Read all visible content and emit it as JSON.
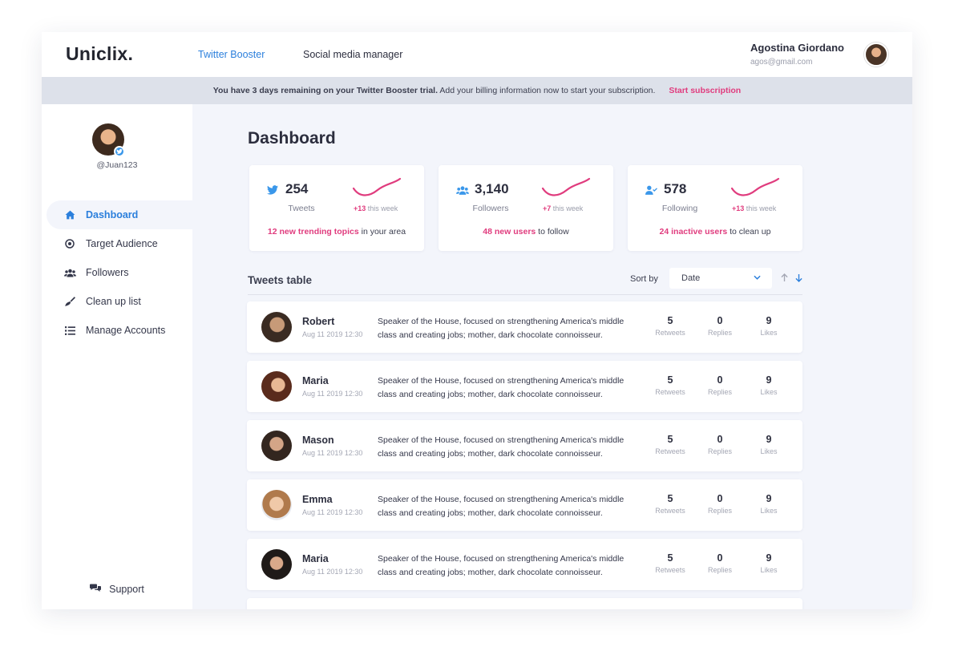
{
  "app": {
    "logo": "Uniclix.",
    "nav": [
      {
        "label": "Twitter Booster",
        "active": true
      },
      {
        "label": "Social media manager",
        "active": false
      }
    ],
    "user": {
      "name": "Agostina Giordano",
      "email": "agos@gmail.com"
    }
  },
  "banner": {
    "strong": "You have 3 days remaining on your Twitter Booster trial.",
    "text": "Add your billing information now to start your subscription.",
    "cta": "Start subscription"
  },
  "sidebar": {
    "handle": "@Juan123",
    "items": [
      {
        "label": "Dashboard",
        "icon": "home-icon",
        "active": true
      },
      {
        "label": "Target Audience",
        "icon": "target-icon",
        "active": false
      },
      {
        "label": "Followers",
        "icon": "users-icon",
        "active": false
      },
      {
        "label": "Clean up list",
        "icon": "broom-icon",
        "active": false
      },
      {
        "label": "Manage Accounts",
        "icon": "list-icon",
        "active": false
      }
    ],
    "support": "Support"
  },
  "main": {
    "title": "Dashboard",
    "stats": [
      {
        "icon": "twitter-bird-icon",
        "value": "254",
        "label": "Tweets",
        "delta": "+13",
        "delta_suffix": " this week",
        "note_hl": "12 new trending topics",
        "note": " in your area"
      },
      {
        "icon": "followers-icon",
        "value": "3,140",
        "label": "Followers",
        "delta": "+7",
        "delta_suffix": " this week",
        "note_hl": "48 new users",
        "note": " to follow"
      },
      {
        "icon": "following-icon",
        "value": "578",
        "label": "Following",
        "delta": "+13",
        "delta_suffix": " this week",
        "note_hl": "24 inactive users",
        "note": " to clean up"
      }
    ],
    "table": {
      "title": "Tweets table",
      "sort_label": "Sort by",
      "sort_value": "Date",
      "metric_labels": [
        "Retweets",
        "Replies",
        "Likes"
      ],
      "rows": [
        {
          "name": "Robert",
          "date": "Aug 11 2019 12:30",
          "text": "Speaker of the House, focused on strengthening America's middle class and creating jobs; mother, dark chocolate connoisseur.",
          "retweets": "5",
          "replies": "0",
          "likes": "9"
        },
        {
          "name": "Maria",
          "date": "Aug 11 2019 12:30",
          "text": "Speaker of the House, focused on strengthening America's middle class and creating jobs; mother, dark chocolate connoisseur.",
          "retweets": "5",
          "replies": "0",
          "likes": "9"
        },
        {
          "name": "Mason",
          "date": "Aug 11 2019 12:30",
          "text": "Speaker of the House, focused on strengthening America's middle class and creating jobs; mother, dark chocolate connoisseur.",
          "retweets": "5",
          "replies": "0",
          "likes": "9"
        },
        {
          "name": "Emma",
          "date": "Aug 11 2019 12:30",
          "text": "Speaker of the House, focused on strengthening America's middle class and creating jobs; mother, dark chocolate connoisseur.",
          "retweets": "5",
          "replies": "0",
          "likes": "9"
        },
        {
          "name": "Maria",
          "date": "Aug 11 2019 12:30",
          "text": "Speaker of the House, focused on strengthening America's middle class and creating jobs; mother, dark chocolate connoisseur.",
          "retweets": "5",
          "replies": "0",
          "likes": "9"
        }
      ]
    }
  },
  "colors": {
    "accent": "#2b7fdc",
    "highlight": "#e03c7e",
    "banner_bg": "#dde1ea",
    "page_bg": "#f3f5fb"
  }
}
